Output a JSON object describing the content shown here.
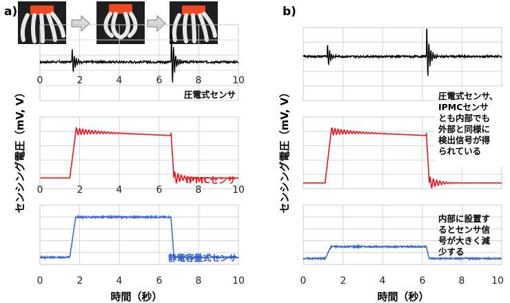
{
  "panels": [
    {
      "id": "a",
      "label": "a)",
      "ylabel": "センシング電圧（mV, V）",
      "xlabel": "時間（秒）",
      "x_ticks": [
        "0",
        "2",
        "4",
        "6",
        "8",
        "10"
      ],
      "photos": [
        "gripper-open-photo",
        "gripper-closed-photo",
        "gripper-open-photo"
      ],
      "charts": [
        {
          "name": "piezo",
          "label": "圧電式センサ",
          "color": "#000000",
          "type": "line",
          "xlim": [
            0,
            10
          ],
          "events": [
            1.6,
            6.6
          ],
          "style": "impulse",
          "amp1": 0.9,
          "amp2": 1.5
        },
        {
          "name": "ipmc",
          "label": "IPMCセンサ",
          "color": "#e8141c",
          "type": "line",
          "xlim": [
            0,
            10
          ],
          "step_on": 1.5,
          "step_off": 6.6,
          "low": 0.15,
          "high": 0.78,
          "style": "step-ring"
        },
        {
          "name": "capacitive",
          "label": "静電容量式センサ",
          "color": "#3b6ccc",
          "type": "line",
          "xlim": [
            0,
            10
          ],
          "step_on": 1.5,
          "step_off": 6.6,
          "low": 0.12,
          "high": 0.8,
          "style": "step-noisy"
        }
      ]
    },
    {
      "id": "b",
      "label": "b)",
      "ylabel": "センシング電圧（mV, V）",
      "xlabel": "時間（秒）",
      "x_ticks": [
        "0",
        "2",
        "4",
        "6",
        "8",
        "10"
      ],
      "charts": [
        {
          "name": "piezo",
          "color": "#000000",
          "type": "line",
          "xlim": [
            0,
            10
          ],
          "events": [
            1.2,
            6.2
          ],
          "style": "impulse",
          "amp1": 0.8,
          "amp2": 1.5
        },
        {
          "name": "ipmc",
          "color": "#e8141c",
          "type": "line",
          "xlim": [
            0,
            10
          ],
          "step_on": 1.1,
          "step_off": 6.2,
          "low": 0.08,
          "high": 0.78,
          "style": "step-ring"
        },
        {
          "name": "capacitive",
          "color": "#3b6ccc",
          "type": "line",
          "xlim": [
            0,
            10
          ],
          "step_on": 1.1,
          "step_off": 6.2,
          "low": 0.1,
          "high": 0.3,
          "style": "step-noisy"
        }
      ],
      "notes": [
        {
          "lines": [
            "圧電式センサ、",
            "IPMCセンサ",
            "とも内部でも",
            "外部と同様に",
            "検出信号が得",
            "られている"
          ]
        },
        {
          "lines": [
            "内部に設置す",
            "るとセンサ信",
            "号が大きく減",
            "少する"
          ]
        }
      ]
    }
  ]
}
